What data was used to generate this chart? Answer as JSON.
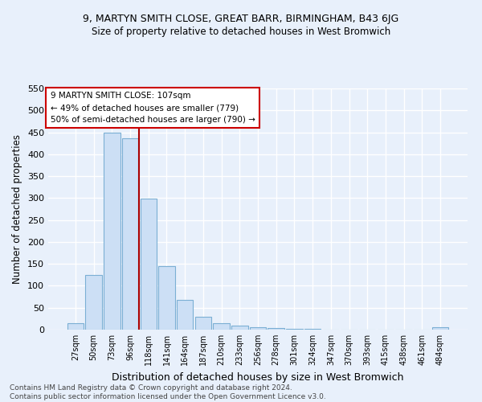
{
  "title1": "9, MARTYN SMITH CLOSE, GREAT BARR, BIRMINGHAM, B43 6JG",
  "title2": "Size of property relative to detached houses in West Bromwich",
  "xlabel": "Distribution of detached houses by size in West Bromwich",
  "ylabel": "Number of detached properties",
  "categories": [
    "27sqm",
    "50sqm",
    "73sqm",
    "96sqm",
    "118sqm",
    "141sqm",
    "164sqm",
    "187sqm",
    "210sqm",
    "233sqm",
    "256sqm",
    "278sqm",
    "301sqm",
    "324sqm",
    "347sqm",
    "370sqm",
    "393sqm",
    "415sqm",
    "438sqm",
    "461sqm",
    "484sqm"
  ],
  "values": [
    15,
    125,
    449,
    437,
    298,
    145,
    68,
    29,
    15,
    9,
    5,
    3,
    1,
    1,
    0,
    0,
    0,
    0,
    0,
    0,
    5
  ],
  "bar_color": "#ccdff5",
  "bar_edge_color": "#7bafd4",
  "vline_x": 3.5,
  "vline_color": "#aa0000",
  "annotation_text": "9 MARTYN SMITH CLOSE: 107sqm\n← 49% of detached houses are smaller (779)\n50% of semi-detached houses are larger (790) →",
  "annotation_box_color": "#ffffff",
  "annotation_box_edge": "#cc0000",
  "footer": "Contains HM Land Registry data © Crown copyright and database right 2024.\nContains public sector information licensed under the Open Government Licence v3.0.",
  "bg_color": "#e8f0fb",
  "ylim": [
    0,
    550
  ],
  "grid_color": "#ffffff"
}
